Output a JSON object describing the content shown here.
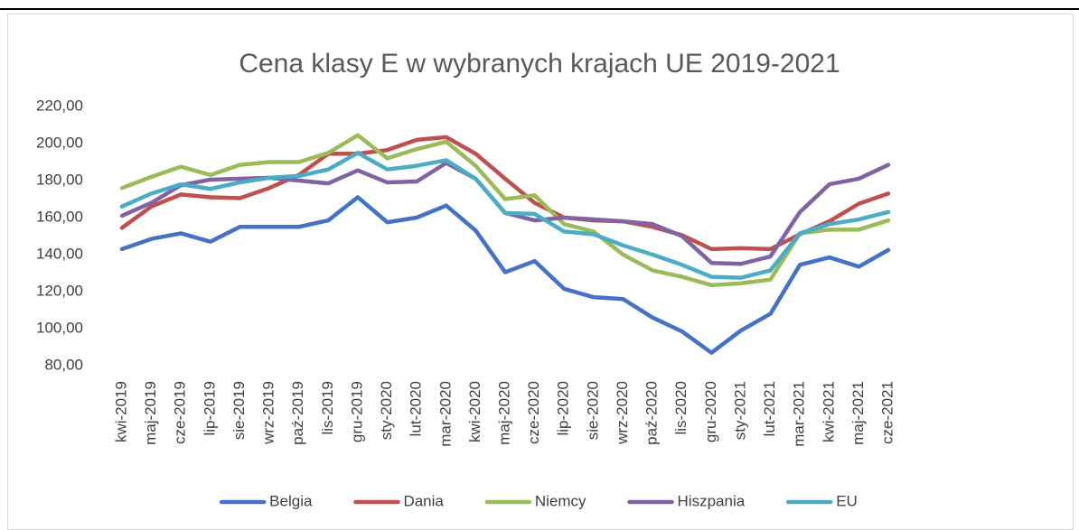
{
  "chart_data": {
    "type": "line",
    "title": "Cena klasy E w wybranych krajach UE 2019-2021",
    "categories": [
      "kwi-2019",
      "maj-2019",
      "cze-2019",
      "lip-2019",
      "sie-2019",
      "wrz-2019",
      "paź-2019",
      "lis-2019",
      "gru-2019",
      "sty-2020",
      "lut-2020",
      "mar-2020",
      "kwi-2020",
      "maj-2020",
      "cze-2020",
      "lip-2020",
      "sie-2020",
      "wrz-2020",
      "paź-2020",
      "lis-2020",
      "gru-2020",
      "sty-2021",
      "lut-2021",
      "mar-2021",
      "kwi-2021",
      "maj-2021",
      "cze-2021"
    ],
    "series": [
      {
        "name": "Belgia",
        "color": "#4472c4",
        "values": [
          143,
          148.5,
          151.5,
          147,
          155,
          155,
          155,
          158.5,
          171,
          157.5,
          160,
          166.5,
          153,
          130.5,
          136.5,
          121.5,
          117,
          116,
          106,
          98.5,
          87,
          99,
          108,
          134.5,
          138.5,
          133.5,
          142.5
        ]
      },
      {
        "name": "Dania",
        "color": "#c0504d",
        "values": [
          154.5,
          166,
          172.5,
          171,
          170.5,
          176,
          183,
          194.5,
          194.5,
          196.5,
          202,
          203.5,
          194.5,
          181,
          168,
          160,
          158.5,
          158,
          155,
          150.5,
          143,
          143.5,
          143,
          151,
          158,
          167.5,
          173
        ]
      },
      {
        "name": "Niemcy",
        "color": "#9bbb59",
        "values": [
          176,
          182,
          187.5,
          183,
          188.5,
          190,
          190,
          195,
          204.5,
          192,
          197,
          201,
          188,
          170,
          172,
          156.5,
          152.5,
          140,
          131.5,
          128,
          123.5,
          124.5,
          126.5,
          151.5,
          153.5,
          153.5,
          158.5
        ]
      },
      {
        "name": "Hiszpania",
        "color": "#8064a2",
        "values": [
          161,
          168,
          177.5,
          180.5,
          181,
          181.5,
          180,
          178.5,
          185.5,
          179,
          179.5,
          189.5,
          181,
          162.5,
          158.5,
          160,
          159,
          158,
          156.5,
          150,
          135.5,
          135,
          139,
          163,
          178,
          181,
          188.5
        ]
      },
      {
        "name": "EU",
        "color": "#4bacc6",
        "values": [
          166,
          173,
          178,
          175.5,
          179,
          181.5,
          182.5,
          186,
          195,
          186,
          188,
          191,
          181,
          162.5,
          162,
          152.5,
          151,
          145,
          140,
          134.5,
          128,
          127.5,
          131.5,
          151.5,
          156.5,
          159,
          163
        ]
      }
    ],
    "ylim": [
      80,
      220
    ],
    "yticks": [
      {
        "value": 80,
        "label": "80,00"
      },
      {
        "value": 100,
        "label": "100,00"
      },
      {
        "value": 120,
        "label": "120,00"
      },
      {
        "value": 140,
        "label": "140,00"
      },
      {
        "value": 160,
        "label": "160,00"
      },
      {
        "value": 180,
        "label": "180,00"
      },
      {
        "value": 200,
        "label": "200,00"
      },
      {
        "value": 220,
        "label": "220,00"
      }
    ],
    "grid": false,
    "legend": "bottom"
  }
}
